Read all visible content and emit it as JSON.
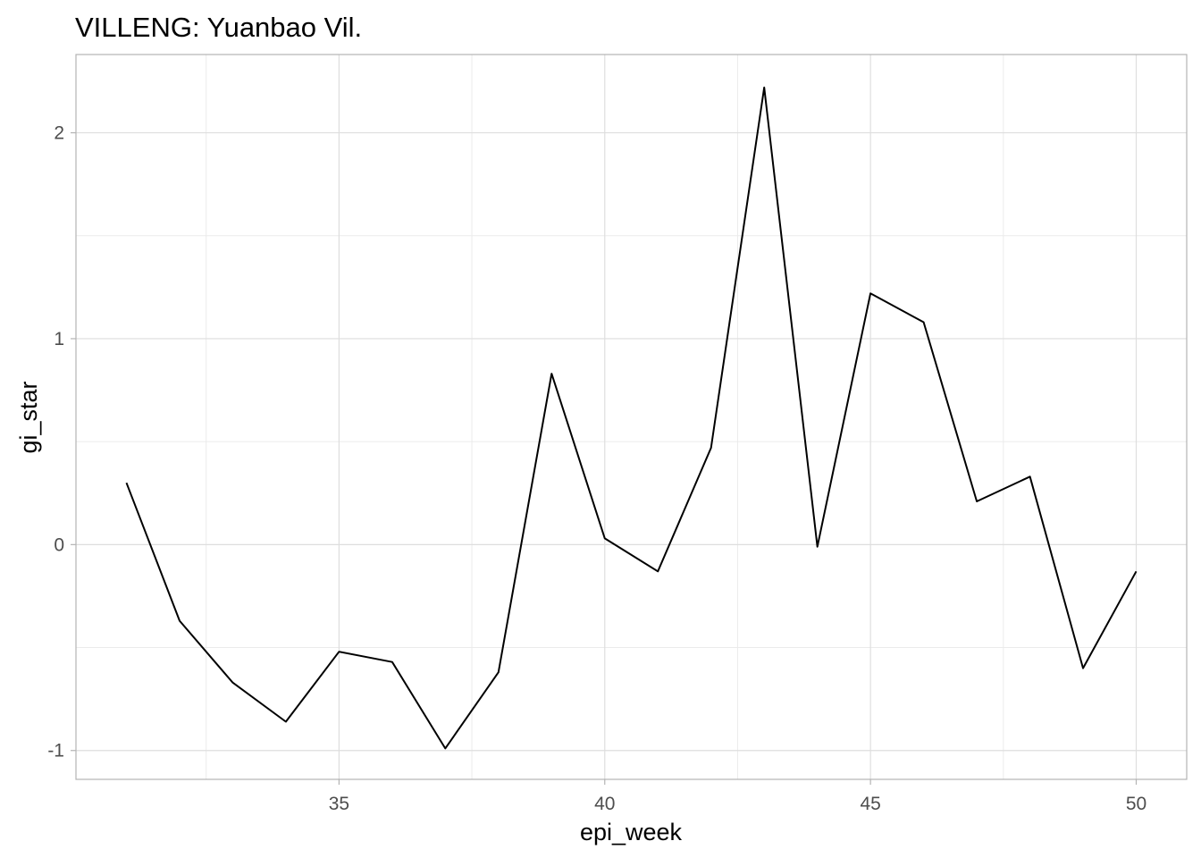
{
  "chart_data": {
    "type": "line",
    "title": "VILLENG: Yuanbao Vil.",
    "xlabel": "epi_week",
    "ylabel": "gi_star",
    "xlim": [
      30.05,
      50.95
    ],
    "ylim": [
      -1.14,
      2.38
    ],
    "x_ticks": [
      35,
      40,
      45,
      50
    ],
    "x_tick_labels": [
      "35",
      "40",
      "45",
      "50"
    ],
    "x_minor_ticks": [
      32.5,
      37.5,
      42.5,
      47.5
    ],
    "y_ticks": [
      -1,
      0,
      1,
      2
    ],
    "y_tick_labels": [
      "-1",
      "0",
      "1",
      "2"
    ],
    "y_minor_ticks": [
      -0.5,
      0.5,
      1.5
    ],
    "grid": true,
    "legend": "none",
    "line_color": "#000000",
    "series": [
      {
        "x": [
          31,
          32,
          33,
          34,
          35,
          36,
          37,
          38,
          39,
          40,
          41,
          42,
          43,
          44,
          45,
          46,
          47,
          48,
          49,
          50
        ],
        "y": [
          0.3,
          -0.37,
          -0.67,
          -0.86,
          -0.52,
          -0.57,
          -0.99,
          -0.62,
          0.83,
          0.03,
          -0.13,
          0.47,
          2.22,
          -0.01,
          1.22,
          1.08,
          0.21,
          0.33,
          -0.6,
          -0.13
        ]
      }
    ]
  }
}
